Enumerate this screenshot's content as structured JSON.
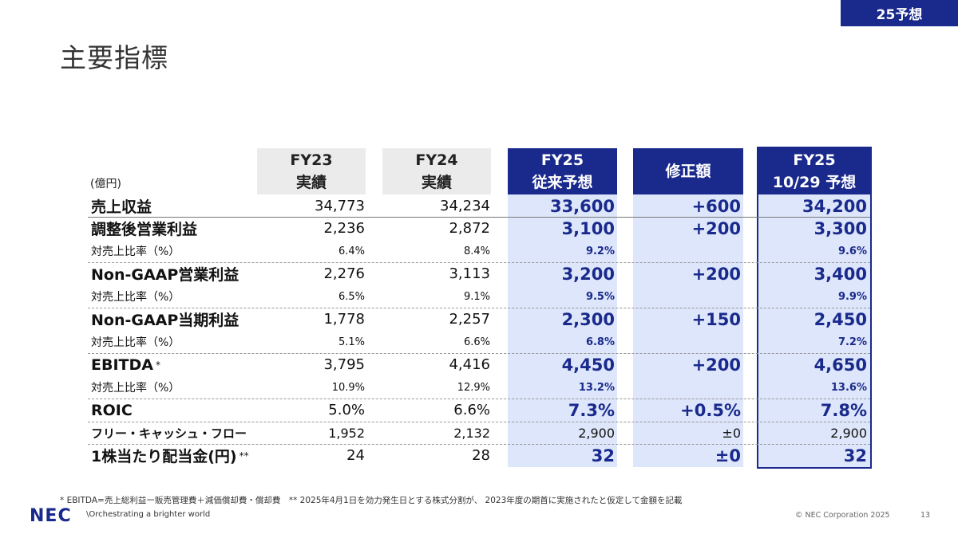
{
  "tag": "25予想",
  "title": "主要指標",
  "unit": "(億円)",
  "headers": {
    "fy23": [
      "FY23",
      "実績"
    ],
    "fy24": [
      "FY24",
      "実績"
    ],
    "prev": [
      "FY25",
      "従来予想"
    ],
    "rev": "修正額",
    "new": [
      "FY25",
      "10/29 予想"
    ]
  },
  "rows": [
    {
      "label": "売上収益",
      "fy23": "34,773",
      "fy24": "34,234",
      "prev": "33,600",
      "rev": "+600",
      "new": "34,200"
    },
    {
      "label": "調整後営業利益",
      "fy23": "2,236",
      "fy24": "2,872",
      "prev": "3,100",
      "rev": "+200",
      "new": "3,300"
    },
    {
      "label": "対売上比率（%）",
      "fy23": "6.4%",
      "fy24": "8.4%",
      "prev": "9.2%",
      "rev": "",
      "new": "9.6%"
    },
    {
      "label": "Non-GAAP営業利益",
      "fy23": "2,276",
      "fy24": "3,113",
      "prev": "3,200",
      "rev": "+200",
      "new": "3,400"
    },
    {
      "label": "対売上比率（%）",
      "fy23": "6.5%",
      "fy24": "9.1%",
      "prev": "9.5%",
      "rev": "",
      "new": "9.9%"
    },
    {
      "label": "Non-GAAP当期利益",
      "fy23": "1,778",
      "fy24": "2,257",
      "prev": "2,300",
      "rev": "+150",
      "new": "2,450"
    },
    {
      "label": "対売上比率（%）",
      "fy23": "5.1%",
      "fy24": "6.6%",
      "prev": "6.8%",
      "rev": "",
      "new": "7.2%"
    },
    {
      "label": "EBITDA",
      "label_mark": "*",
      "fy23": "3,795",
      "fy24": "4,416",
      "prev": "4,450",
      "rev": "+200",
      "new": "4,650"
    },
    {
      "label": "対売上比率（%）",
      "fy23": "10.9%",
      "fy24": "12.9%",
      "prev": "13.2%",
      "rev": "",
      "new": "13.6%"
    },
    {
      "label": "ROIC",
      "fy23": "5.0%",
      "fy24": "6.6%",
      "prev": "7.3%",
      "rev": "+0.5%",
      "new": "7.8%"
    },
    {
      "label": "フリー・キャッシュ・フロー",
      "fy23": "1,952",
      "fy24": "2,132",
      "prev": "2,900",
      "rev": "±0",
      "new": "2,900"
    },
    {
      "label": "1株当たり配当金(円)",
      "label_mark": "**",
      "fy23": "24",
      "fy24": "28",
      "prev": "32",
      "rev": "±0",
      "new": "32"
    }
  ],
  "footnote": "* EBITDA=売上総利益ー販売管理費＋減価償却費・償却費　** 2025年4月1日を効力発生日とする株式分割が、 2023年度の期首に実施されたと仮定して金額を記載",
  "logo": "NEC",
  "slogan": "\\Orchestrating a brighter world",
  "copyright": "© NEC Corporation 2025",
  "page_number": "13",
  "colors": {
    "brand": "#1a2a8c",
    "highlight": "#dde6fa",
    "header_gray": "#ebebeb"
  }
}
